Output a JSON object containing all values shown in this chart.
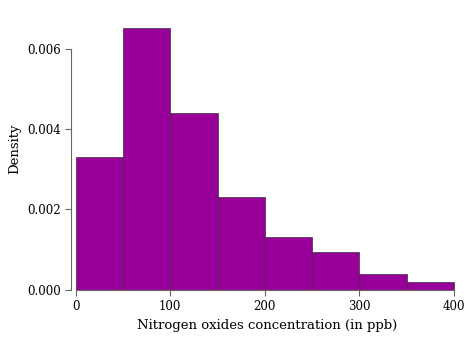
{
  "bin_edges": [
    0,
    50,
    100,
    150,
    200,
    250,
    300,
    350,
    400
  ],
  "densities": [
    0.0033,
    0.0065,
    0.0044,
    0.0023,
    0.0013,
    0.00095,
    0.0004,
    0.0002
  ],
  "bar_color": "#990099",
  "bar_edge_color": "#333333",
  "bar_linewidth": 0.5,
  "xlabel": "Nitrogen oxides concentration (in ppb)",
  "ylabel": "Density",
  "xlim": [
    -5,
    410
  ],
  "ylim": [
    0,
    0.007
  ],
  "xticks": [
    0,
    100,
    200,
    300,
    400
  ],
  "yticks": [
    0.0,
    0.002,
    0.004,
    0.006
  ],
  "ytick_labels": [
    "0.000",
    "0.002",
    "0.004",
    "0.006"
  ],
  "xlabel_fontsize": 9.5,
  "ylabel_fontsize": 9.5,
  "tick_fontsize": 8.5,
  "background_color": "#ffffff",
  "spine_color": "#666666"
}
